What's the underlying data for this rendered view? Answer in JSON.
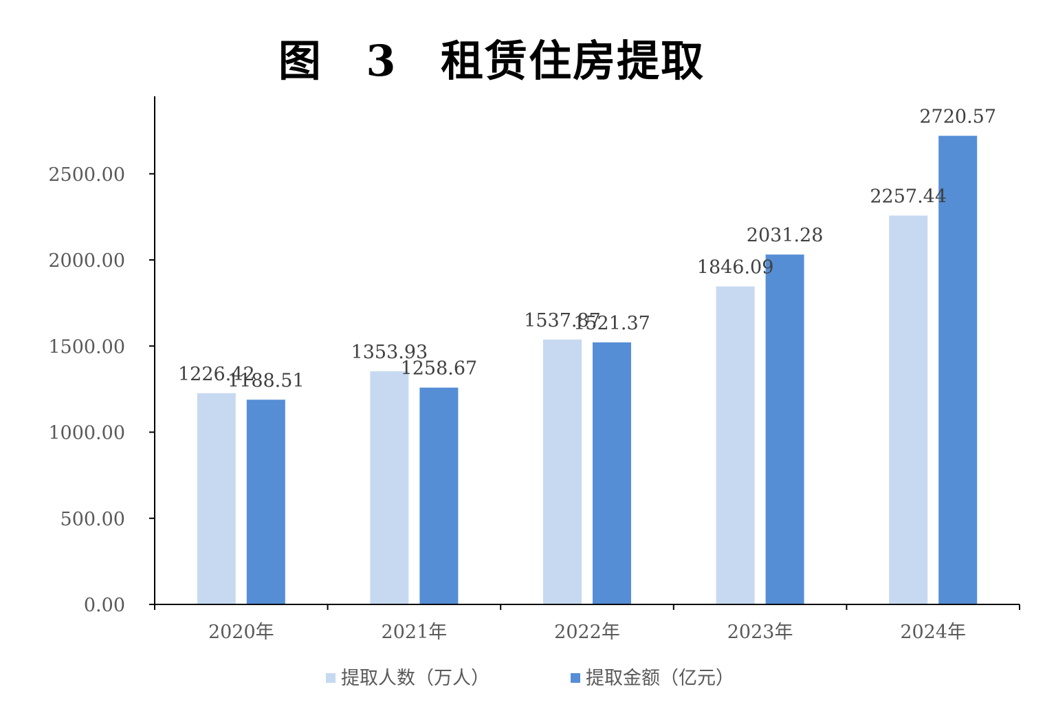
{
  "chart_data": {
    "type": "bar",
    "title": "图 3 租赁住房提取",
    "categories": [
      "2020年",
      "2021年",
      "2022年",
      "2023年",
      "2024年"
    ],
    "series": [
      {
        "name": "提取人数（万人）",
        "values": [
          1226.42,
          1353.93,
          1537.87,
          1846.09,
          2257.44
        ],
        "color": "#c6d9f0",
        "labels": [
          "1226.42",
          "1353.93",
          "1537.87",
          "1846.09",
          "2257.44"
        ]
      },
      {
        "name": "提取金额（亿元）",
        "values": [
          1188.51,
          1258.67,
          1521.37,
          2031.28,
          2720.57
        ],
        "color": "#558ed5",
        "labels": [
          "1188.51",
          "1258.67",
          "1521.37",
          "2031.28",
          "2720.57"
        ]
      }
    ],
    "yticks": [
      "0.00",
      "500.00",
      "1000.00",
      "1500.00",
      "2000.00",
      "2500.00"
    ],
    "ylim": [
      0,
      2950
    ],
    "grid": false,
    "legend_position": "bottom"
  }
}
